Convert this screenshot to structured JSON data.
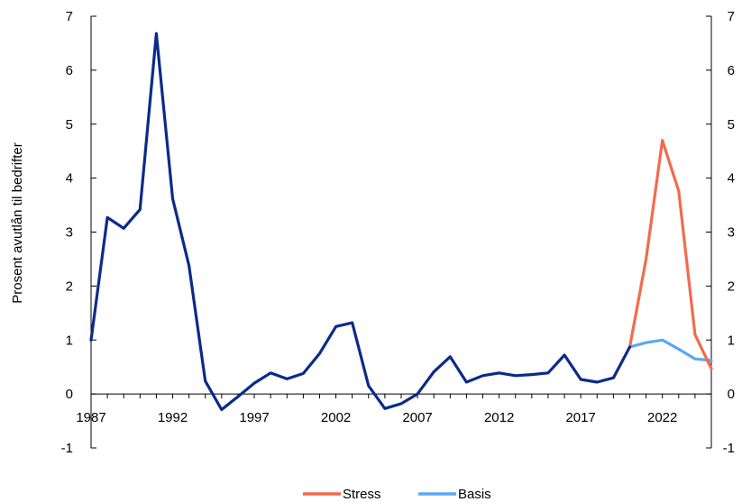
{
  "chart_data": {
    "type": "line",
    "ylabel": "Prosent avutlån til bedrifter",
    "ylim": [
      -1,
      7
    ],
    "y_ticks": [
      "-1",
      "0",
      "1",
      "2",
      "3",
      "4",
      "5",
      "6",
      "7"
    ],
    "x_ticks": [
      "1987",
      "1992",
      "1997",
      "2002",
      "2007",
      "2012",
      "2017",
      "2022"
    ],
    "xlim": [
      1987,
      2025
    ],
    "grid": false,
    "legend_position": "bottom-center",
    "series": [
      {
        "key": "historical",
        "color": "#0b2b8a",
        "x": [
          1987,
          1988,
          1989,
          1990,
          1991,
          1992,
          1993,
          1994,
          1995,
          1996,
          1997,
          1998,
          1999,
          2000,
          2001,
          2002,
          2003,
          2004,
          2005,
          2006,
          2007,
          2008,
          2009,
          2010,
          2011,
          2012,
          2013,
          2014,
          2015,
          2016,
          2017,
          2018,
          2019,
          2020
        ],
        "y": [
          1.0,
          3.27,
          3.07,
          3.42,
          6.68,
          3.62,
          2.38,
          0.24,
          -0.29,
          -0.05,
          0.2,
          0.39,
          0.28,
          0.38,
          0.75,
          1.25,
          1.32,
          0.15,
          -0.27,
          -0.18,
          0.0,
          0.41,
          0.69,
          0.22,
          0.34,
          0.39,
          0.34,
          0.36,
          0.39,
          0.72,
          0.27,
          0.22,
          0.3,
          0.87
        ]
      },
      {
        "key": "stress",
        "name": "Stress",
        "color": "#f26b4f",
        "x": [
          2020,
          2021,
          2022,
          2023,
          2024,
          2025
        ],
        "y": [
          0.87,
          2.5,
          4.7,
          3.76,
          1.1,
          0.47
        ]
      },
      {
        "key": "basis",
        "name": "Basis",
        "color": "#5aa7f5",
        "x": [
          2020,
          2021,
          2022,
          2023,
          2024,
          2025
        ],
        "y": [
          0.87,
          0.95,
          1.0,
          0.83,
          0.65,
          0.62
        ]
      }
    ],
    "legend": [
      {
        "label": "Stress",
        "color": "#f26b4f"
      },
      {
        "label": "Basis",
        "color": "#5aa7f5"
      }
    ]
  }
}
